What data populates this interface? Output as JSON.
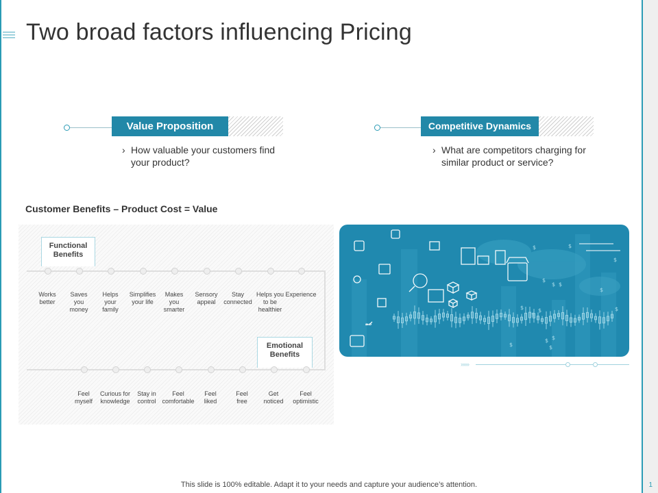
{
  "slide": {
    "title": "Two broad factors influencing Pricing",
    "page_number": "1",
    "footer": "This slide is 100% editable. Adapt it to your needs and capture your audience’s attention."
  },
  "factors": [
    {
      "label": "Value Proposition",
      "bullet": "›",
      "description": "How valuable your customers find your product?"
    },
    {
      "label": "Competitive Dynamics",
      "bullet": "›",
      "description": "What are competitors charging for similar product or service?"
    }
  ],
  "equation": "Customer Benefits – Product Cost = Value",
  "functional": {
    "label_line1": "Functional",
    "label_line2": "Benefits",
    "items": [
      [
        "Works",
        "better"
      ],
      [
        "Saves",
        "you",
        "money"
      ],
      [
        "Helps",
        "your",
        "family"
      ],
      [
        "Simplifies",
        "your life"
      ],
      [
        "Makes",
        "you",
        "smarter"
      ],
      [
        "Sensory",
        "appeal"
      ],
      [
        "Stay",
        "connected"
      ],
      [
        "Helps you",
        "to be",
        "healthier"
      ],
      [
        "Experience"
      ]
    ]
  },
  "emotional": {
    "label_line1": "Emotional",
    "label_line2": "Benefits",
    "items": [
      [
        "Feel",
        "myself"
      ],
      [
        "Curious for",
        "knowledge"
      ],
      [
        "Stay in",
        "control"
      ],
      [
        "Feel",
        "comfortable"
      ],
      [
        "Feel",
        "liked"
      ],
      [
        "Feel",
        "free"
      ],
      [
        "Get",
        "noticed"
      ],
      [
        "Feel",
        "optimistic"
      ]
    ]
  },
  "illustration": {
    "icon": "pricing-business-illustration",
    "dollar_symbol": "$"
  },
  "colors": {
    "accent": "#2288a8",
    "panel": "#2089af",
    "border": "#2a9bb5"
  }
}
